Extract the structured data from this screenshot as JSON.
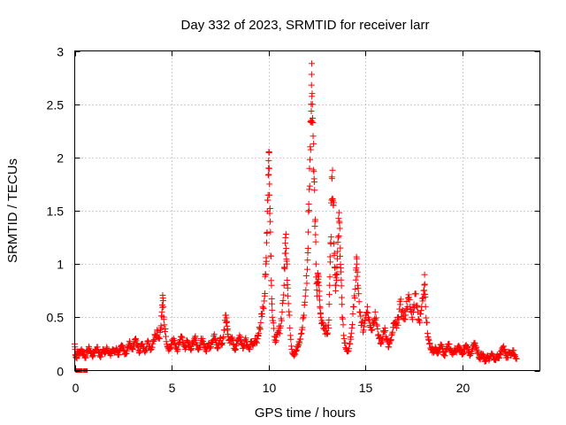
{
  "chart_data": {
    "type": "scatter",
    "title": "Day 332 of 2023, SRMTID for receiver larr",
    "xlabel": "GPS time / hours",
    "ylabel": "SRMTID / TECUs",
    "xlim": [
      0,
      24
    ],
    "ylim": [
      0,
      3
    ],
    "xticks": [
      0,
      5,
      10,
      15,
      20
    ],
    "yticks": [
      0,
      0.5,
      1,
      1.5,
      2,
      2.5,
      3
    ],
    "xtick_labels": [
      "0",
      "5",
      "10",
      "15",
      "20"
    ],
    "ytick_labels": [
      "0",
      "0.5",
      "1",
      "1.5",
      "2",
      "2.5",
      "3"
    ],
    "grid": true,
    "marker": "plus",
    "color": "#ff0000",
    "zero_markers": [
      {
        "x": 0.15,
        "y": 0
      },
      {
        "x": 0.3,
        "y": 0
      },
      {
        "x": 0.55,
        "y": 0
      }
    ],
    "points": [
      [
        0.0,
        0.25
      ],
      [
        0.05,
        0.14
      ],
      [
        0.1,
        0.12
      ],
      [
        0.15,
        0.18
      ],
      [
        0.25,
        0.16
      ],
      [
        0.35,
        0.2
      ],
      [
        0.45,
        0.15
      ],
      [
        0.55,
        0.13
      ],
      [
        0.65,
        0.18
      ],
      [
        0.75,
        0.21
      ],
      [
        0.85,
        0.16
      ],
      [
        0.95,
        0.14
      ],
      [
        1.05,
        0.19
      ],
      [
        1.15,
        0.22
      ],
      [
        1.25,
        0.17
      ],
      [
        1.35,
        0.13
      ],
      [
        1.45,
        0.2
      ],
      [
        1.55,
        0.16
      ],
      [
        1.65,
        0.22
      ],
      [
        1.75,
        0.18
      ],
      [
        1.85,
        0.14
      ],
      [
        1.95,
        0.2
      ],
      [
        2.05,
        0.17
      ],
      [
        2.15,
        0.21
      ],
      [
        2.25,
        0.15
      ],
      [
        2.35,
        0.19
      ],
      [
        2.45,
        0.23
      ],
      [
        2.55,
        0.18
      ],
      [
        2.65,
        0.16
      ],
      [
        2.75,
        0.22
      ],
      [
        2.85,
        0.26
      ],
      [
        2.95,
        0.2
      ],
      [
        3.05,
        0.24
      ],
      [
        3.15,
        0.3
      ],
      [
        3.25,
        0.22
      ],
      [
        3.35,
        0.18
      ],
      [
        3.45,
        0.25
      ],
      [
        3.55,
        0.21
      ],
      [
        3.65,
        0.19
      ],
      [
        3.75,
        0.27
      ],
      [
        3.85,
        0.23
      ],
      [
        3.95,
        0.2
      ],
      [
        4.05,
        0.28
      ],
      [
        4.15,
        0.33
      ],
      [
        4.25,
        0.38
      ],
      [
        4.35,
        0.3
      ],
      [
        4.45,
        0.42
      ],
      [
        4.5,
        0.55
      ],
      [
        4.55,
        0.68
      ],
      [
        4.6,
        0.48
      ],
      [
        4.7,
        0.32
      ],
      [
        4.8,
        0.22
      ],
      [
        4.9,
        0.2
      ],
      [
        5.0,
        0.25
      ],
      [
        5.1,
        0.3
      ],
      [
        5.2,
        0.22
      ],
      [
        5.3,
        0.18
      ],
      [
        5.4,
        0.26
      ],
      [
        5.5,
        0.32
      ],
      [
        5.6,
        0.24
      ],
      [
        5.7,
        0.2
      ],
      [
        5.8,
        0.28
      ],
      [
        5.9,
        0.23
      ],
      [
        6.0,
        0.19
      ],
      [
        6.1,
        0.27
      ],
      [
        6.2,
        0.31
      ],
      [
        6.3,
        0.24
      ],
      [
        6.4,
        0.2
      ],
      [
        6.5,
        0.26
      ],
      [
        6.6,
        0.3
      ],
      [
        6.7,
        0.22
      ],
      [
        6.8,
        0.18
      ],
      [
        6.9,
        0.25
      ],
      [
        7.0,
        0.21
      ],
      [
        7.1,
        0.28
      ],
      [
        7.2,
        0.34
      ],
      [
        7.3,
        0.26
      ],
      [
        7.4,
        0.22
      ],
      [
        7.5,
        0.3
      ],
      [
        7.6,
        0.24
      ],
      [
        7.7,
        0.38
      ],
      [
        7.8,
        0.52
      ],
      [
        7.85,
        0.46
      ],
      [
        7.9,
        0.34
      ],
      [
        8.0,
        0.26
      ],
      [
        8.1,
        0.3
      ],
      [
        8.2,
        0.24
      ],
      [
        8.3,
        0.2
      ],
      [
        8.4,
        0.28
      ],
      [
        8.5,
        0.33
      ],
      [
        8.6,
        0.25
      ],
      [
        8.7,
        0.21
      ],
      [
        8.8,
        0.29
      ],
      [
        8.9,
        0.24
      ],
      [
        9.0,
        0.2
      ],
      [
        9.1,
        0.27
      ],
      [
        9.2,
        0.23
      ],
      [
        9.3,
        0.3
      ],
      [
        9.4,
        0.26
      ],
      [
        9.5,
        0.35
      ],
      [
        9.6,
        0.45
      ],
      [
        9.7,
        0.6
      ],
      [
        9.8,
        0.7
      ],
      [
        9.85,
        0.9
      ],
      [
        9.9,
        1.2
      ],
      [
        9.95,
        1.6
      ],
      [
        10.0,
        1.9
      ],
      [
        10.02,
        2.05
      ],
      [
        10.05,
        1.75
      ],
      [
        10.1,
        1.3
      ],
      [
        10.15,
        0.8
      ],
      [
        10.2,
        0.5
      ],
      [
        10.3,
        0.32
      ],
      [
        10.4,
        0.28
      ],
      [
        10.5,
        0.36
      ],
      [
        10.6,
        0.4
      ],
      [
        10.7,
        0.55
      ],
      [
        10.8,
        0.8
      ],
      [
        10.85,
        1.1
      ],
      [
        10.9,
        1.28
      ],
      [
        10.95,
        1.0
      ],
      [
        11.0,
        0.7
      ],
      [
        11.1,
        0.4
      ],
      [
        11.2,
        0.2
      ],
      [
        11.3,
        0.15
      ],
      [
        11.4,
        0.18
      ],
      [
        11.5,
        0.22
      ],
      [
        11.6,
        0.26
      ],
      [
        11.7,
        0.35
      ],
      [
        11.8,
        0.5
      ],
      [
        11.9,
        0.7
      ],
      [
        12.0,
        0.95
      ],
      [
        12.05,
        1.3
      ],
      [
        12.1,
        1.7
      ],
      [
        12.15,
        2.1
      ],
      [
        12.2,
        2.5
      ],
      [
        12.22,
        2.78
      ],
      [
        12.25,
        2.6
      ],
      [
        12.3,
        2.2
      ],
      [
        12.35,
        1.8
      ],
      [
        12.4,
        1.4
      ],
      [
        12.45,
        1.0
      ],
      [
        12.5,
        0.7
      ],
      [
        12.55,
        0.9
      ],
      [
        12.6,
        0.8
      ],
      [
        12.65,
        0.6
      ],
      [
        12.7,
        0.5
      ],
      [
        12.8,
        0.45
      ],
      [
        12.9,
        0.4
      ],
      [
        13.0,
        0.35
      ],
      [
        13.1,
        0.4
      ],
      [
        13.15,
        0.8
      ],
      [
        13.2,
        1.2
      ],
      [
        13.25,
        1.6
      ],
      [
        13.3,
        1.88
      ],
      [
        13.35,
        1.55
      ],
      [
        13.4,
        1.1
      ],
      [
        13.45,
        0.8
      ],
      [
        13.5,
        0.9
      ],
      [
        13.55,
        1.05
      ],
      [
        13.6,
        1.25
      ],
      [
        13.65,
        1.4
      ],
      [
        13.7,
        1.15
      ],
      [
        13.75,
        0.85
      ],
      [
        13.8,
        0.5
      ],
      [
        13.9,
        0.3
      ],
      [
        14.0,
        0.2
      ],
      [
        14.1,
        0.18
      ],
      [
        14.2,
        0.25
      ],
      [
        14.3,
        0.4
      ],
      [
        14.4,
        0.6
      ],
      [
        14.5,
        0.85
      ],
      [
        14.55,
        1.05
      ],
      [
        14.6,
        0.8
      ],
      [
        14.7,
        0.55
      ],
      [
        14.8,
        0.45
      ],
      [
        14.9,
        0.38
      ],
      [
        15.0,
        0.52
      ],
      [
        15.1,
        0.6
      ],
      [
        15.2,
        0.48
      ],
      [
        15.3,
        0.38
      ],
      [
        15.4,
        0.45
      ],
      [
        15.5,
        0.55
      ],
      [
        15.6,
        0.42
      ],
      [
        15.7,
        0.3
      ],
      [
        15.8,
        0.25
      ],
      [
        15.9,
        0.32
      ],
      [
        16.0,
        0.4
      ],
      [
        16.1,
        0.3
      ],
      [
        16.2,
        0.22
      ],
      [
        16.3,
        0.28
      ],
      [
        16.4,
        0.36
      ],
      [
        16.5,
        0.45
      ],
      [
        16.6,
        0.4
      ],
      [
        16.7,
        0.5
      ],
      [
        16.8,
        0.62
      ],
      [
        16.9,
        0.55
      ],
      [
        17.0,
        0.48
      ],
      [
        17.1,
        0.58
      ],
      [
        17.2,
        0.68
      ],
      [
        17.3,
        0.6
      ],
      [
        17.4,
        0.5
      ],
      [
        17.5,
        0.62
      ],
      [
        17.6,
        0.72
      ],
      [
        17.7,
        0.55
      ],
      [
        17.8,
        0.45
      ],
      [
        17.9,
        0.6
      ],
      [
        18.0,
        0.75
      ],
      [
        18.05,
        0.9
      ],
      [
        18.1,
        0.6
      ],
      [
        18.2,
        0.35
      ],
      [
        18.3,
        0.25
      ],
      [
        18.4,
        0.2
      ],
      [
        18.5,
        0.18
      ],
      [
        18.6,
        0.22
      ],
      [
        18.7,
        0.16
      ],
      [
        18.8,
        0.2
      ],
      [
        18.9,
        0.24
      ],
      [
        19.0,
        0.18
      ],
      [
        19.1,
        0.14
      ],
      [
        19.2,
        0.2
      ],
      [
        19.3,
        0.25
      ],
      [
        19.4,
        0.19
      ],
      [
        19.5,
        0.15
      ],
      [
        19.6,
        0.21
      ],
      [
        19.7,
        0.17
      ],
      [
        19.8,
        0.23
      ],
      [
        19.9,
        0.19
      ],
      [
        20.0,
        0.15
      ],
      [
        20.1,
        0.2
      ],
      [
        20.2,
        0.24
      ],
      [
        20.3,
        0.18
      ],
      [
        20.4,
        0.14
      ],
      [
        20.5,
        0.2
      ],
      [
        20.6,
        0.26
      ],
      [
        20.7,
        0.21
      ],
      [
        20.8,
        0.16
      ],
      [
        20.9,
        0.12
      ],
      [
        21.0,
        0.16
      ],
      [
        21.1,
        0.12
      ],
      [
        21.2,
        0.09
      ],
      [
        21.3,
        0.14
      ],
      [
        21.4,
        0.11
      ],
      [
        21.5,
        0.16
      ],
      [
        21.6,
        0.13
      ],
      [
        21.7,
        0.1
      ],
      [
        21.8,
        0.15
      ],
      [
        21.9,
        0.12
      ],
      [
        22.0,
        0.18
      ],
      [
        22.1,
        0.22
      ],
      [
        22.2,
        0.16
      ],
      [
        22.3,
        0.12
      ],
      [
        22.4,
        0.17
      ],
      [
        22.5,
        0.14
      ],
      [
        22.6,
        0.19
      ],
      [
        22.7,
        0.15
      ],
      [
        22.8,
        0.11
      ]
    ]
  }
}
